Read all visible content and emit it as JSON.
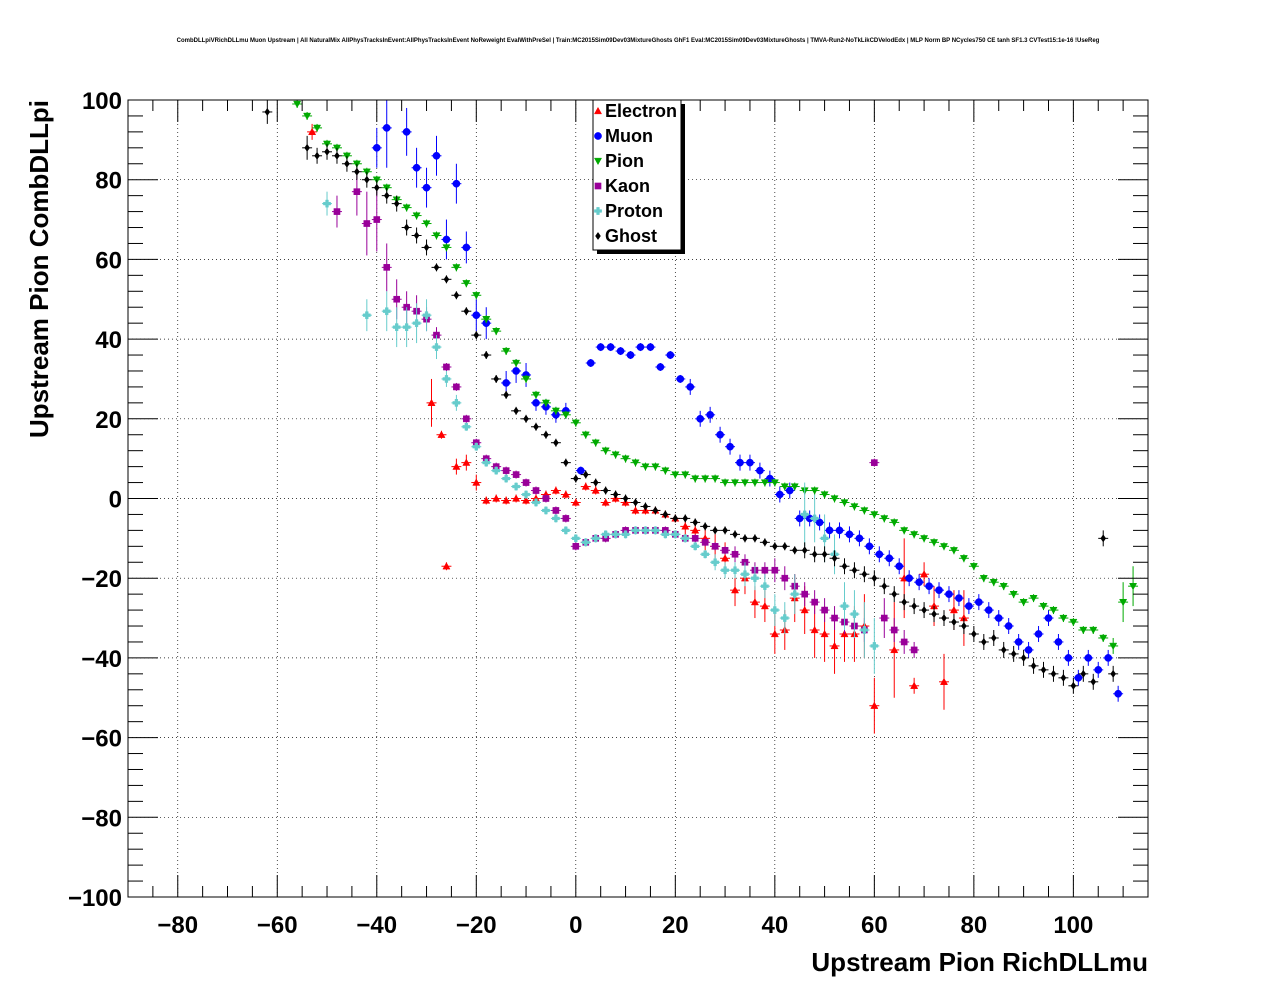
{
  "chart_data": {
    "type": "scatter",
    "title": "CombDLLpiVRichDLLmu Muon Upstream | All NaturalMix AllPhysTracksInEvent:AllPhysTracksInEvent NoReweight EvalWithPreSel | Train:MC2015Sim09Dev03MixtureGhosts GhF1 Eval:MC2015Sim09Dev03MixtureGhosts | TMVA-Run2-NoTkLikCDVelodEdx | MLP Norm BP NCycles750 CE tanh SF1.3 CVTest15:1e-16 !UseReg",
    "xlabel": "Upstream Pion RichDLLmu",
    "ylabel": "Upstream Pion CombDLLpi",
    "xlim": [
      -90,
      115
    ],
    "ylim": [
      -100,
      100
    ],
    "xticks": [
      -80,
      -60,
      -40,
      -20,
      0,
      20,
      40,
      60,
      80,
      100
    ],
    "xtick_labels": [
      "−80",
      "−60",
      "−40",
      "−20",
      "0",
      "20",
      "40",
      "60",
      "80",
      "100"
    ],
    "yticks": [
      -100,
      -80,
      -60,
      -40,
      -20,
      0,
      20,
      40,
      60,
      80,
      100
    ],
    "ytick_labels": [
      "−100",
      "−80",
      "−60",
      "−40",
      "−20",
      "0",
      "20",
      "40",
      "60",
      "80",
      "100"
    ],
    "grid": true,
    "legend_position": "top-center",
    "series": [
      {
        "name": "Electron",
        "color": "#ff0000",
        "marker": "triangle-up",
        "x": [
          -53,
          -29,
          -27,
          -26,
          -24,
          -22,
          -20,
          -18,
          -16,
          -14,
          -12,
          -10,
          -8,
          -6,
          -4,
          -2,
          0,
          2,
          4,
          6,
          8,
          10,
          12,
          14,
          16,
          18,
          20,
          22,
          24,
          26,
          28,
          30,
          32,
          34,
          36,
          38,
          40,
          42,
          44,
          46,
          48,
          50,
          52,
          54,
          56,
          58,
          60,
          64,
          66,
          68,
          70,
          72,
          74,
          76,
          78
        ],
        "y": [
          92,
          24,
          16,
          -17,
          8,
          9,
          4,
          -0.5,
          0,
          -0.5,
          0,
          -0.5,
          0,
          1,
          2,
          1,
          -1,
          3,
          2,
          -1,
          0,
          -1,
          -3,
          -3,
          -3,
          -4,
          -5,
          -7,
          -8,
          -10,
          -12,
          -15,
          -23,
          -20,
          -26,
          -27,
          -34,
          -33,
          -25,
          -28,
          -33,
          -34,
          -37,
          -34,
          -34,
          -32,
          -52,
          -38,
          -20,
          -47,
          -19,
          -27,
          -46,
          -28,
          -30
        ],
        "yerr": [
          2,
          6,
          1,
          1,
          2,
          2,
          2,
          1,
          1,
          1,
          1,
          1,
          1,
          1,
          1,
          1,
          1,
          1,
          1,
          1,
          1,
          1,
          1,
          1,
          1,
          1,
          1,
          2,
          2,
          3,
          3,
          4,
          4,
          4,
          4,
          4,
          5,
          5,
          6,
          6,
          7,
          7,
          7,
          7,
          7,
          8,
          7,
          12,
          10,
          2,
          3,
          5,
          7,
          5,
          7
        ]
      },
      {
        "name": "Muon",
        "color": "#0000ff",
        "marker": "circle",
        "x": [
          -40,
          -38,
          -34,
          -32,
          -30,
          -28,
          -26,
          -24,
          -22,
          -20,
          -18,
          -14,
          -12,
          -10,
          -8,
          -6,
          -4,
          -2,
          1,
          3,
          5,
          7,
          9,
          11,
          13,
          15,
          17,
          19,
          21,
          23,
          25,
          27,
          29,
          31,
          33,
          35,
          37,
          39,
          41,
          43,
          45,
          47,
          49,
          51,
          53,
          55,
          57,
          59,
          61,
          63,
          65,
          67,
          69,
          71,
          73,
          75,
          77,
          79,
          81,
          83,
          85,
          87,
          89,
          91,
          93,
          95,
          97,
          99,
          101,
          103,
          105,
          107,
          109
        ],
        "y": [
          88,
          93,
          92,
          83,
          78,
          86,
          65,
          79,
          63,
          46,
          44,
          29,
          32,
          31,
          24,
          23,
          21,
          22,
          7,
          34,
          38,
          38,
          37,
          36,
          38,
          38,
          33,
          36,
          30,
          28,
          20,
          21,
          16,
          13,
          9,
          9,
          7,
          5,
          1,
          2,
          -5,
          -5,
          -6,
          -8,
          -8,
          -9,
          -10,
          -12,
          -14,
          -15,
          -17,
          -20,
          -21,
          -22,
          -23,
          -24,
          -25,
          -27,
          -26,
          -28,
          -30,
          -32,
          -36,
          -38,
          -34,
          -30,
          -36,
          -40,
          -45,
          -40,
          -43,
          -40,
          -49
        ],
        "yerr": [
          5,
          10,
          6,
          5,
          5,
          5,
          5,
          5,
          4,
          4,
          4,
          3,
          3,
          3,
          2,
          2,
          2,
          2,
          1,
          1,
          1,
          1,
          1,
          1,
          1,
          1,
          1,
          1,
          1,
          2,
          2,
          2,
          2,
          2,
          2,
          2,
          2,
          2,
          2,
          2,
          2,
          2,
          2,
          2,
          2,
          2,
          2,
          2,
          2,
          2,
          2,
          2,
          2,
          2,
          2,
          2,
          2,
          2,
          2,
          2,
          2,
          2,
          2,
          2,
          2,
          2,
          2,
          2,
          2,
          2,
          2,
          2,
          2
        ]
      },
      {
        "name": "Pion",
        "color": "#00aa00",
        "marker": "triangle-down",
        "x": [
          -56,
          -54,
          -52,
          -50,
          -48,
          -46,
          -44,
          -42,
          -40,
          -38,
          -36,
          -34,
          -32,
          -30,
          -28,
          -26,
          -24,
          -22,
          -20,
          -18,
          -16,
          -14,
          -12,
          -10,
          -8,
          -6,
          -4,
          -2,
          0,
          2,
          4,
          6,
          8,
          10,
          12,
          14,
          16,
          18,
          20,
          22,
          24,
          26,
          28,
          30,
          32,
          34,
          36,
          38,
          40,
          42,
          44,
          46,
          48,
          50,
          52,
          54,
          56,
          58,
          60,
          62,
          64,
          66,
          68,
          70,
          72,
          74,
          76,
          78,
          80,
          82,
          84,
          86,
          88,
          90,
          92,
          94,
          96,
          98,
          100,
          102,
          104,
          106,
          108,
          110,
          112
        ],
        "y": [
          99,
          96,
          93,
          89,
          88,
          86,
          84,
          82,
          80,
          78,
          75,
          73,
          71,
          69,
          66,
          63,
          58,
          54,
          51,
          45,
          42,
          37,
          34,
          30,
          26,
          24,
          22,
          21,
          19,
          16,
          14,
          12,
          11,
          10,
          9,
          8,
          8,
          7,
          6,
          6,
          5,
          5,
          5,
          4,
          4,
          4,
          4,
          4,
          4,
          3,
          3,
          2,
          2,
          1,
          0,
          -1,
          -2,
          -3,
          -4,
          -5,
          -6,
          -8,
          -9,
          -10,
          -11,
          -12,
          -13,
          -15,
          -17,
          -20,
          -21,
          -22,
          -24,
          -26,
          -25,
          -27,
          -28,
          -30,
          -31,
          -33,
          -33,
          -35,
          -37,
          -26,
          -22
        ],
        "yerr": [
          1,
          1,
          1,
          1,
          1,
          1,
          1,
          1,
          1,
          1,
          1,
          1,
          1,
          1,
          1,
          1,
          1,
          1,
          1,
          1,
          1,
          1,
          1,
          1,
          1,
          1,
          1,
          1,
          1,
          1,
          1,
          1,
          1,
          1,
          1,
          1,
          1,
          1,
          1,
          1,
          1,
          1,
          1,
          1,
          1,
          1,
          1,
          1,
          1,
          1,
          1,
          1,
          1,
          1,
          1,
          1,
          1,
          1,
          1,
          1,
          1,
          1,
          1,
          1,
          1,
          1,
          1,
          1,
          1,
          1,
          1,
          1,
          1,
          1,
          1,
          1,
          1,
          1,
          1,
          1,
          1,
          1,
          2,
          5,
          5
        ]
      },
      {
        "name": "Kaon",
        "color": "#990099",
        "marker": "square",
        "x": [
          -48,
          -44,
          -42,
          -40,
          -38,
          -36,
          -34,
          -32,
          -30,
          -28,
          -26,
          -24,
          -22,
          -20,
          -18,
          -16,
          -14,
          -12,
          -10,
          -8,
          -6,
          -4,
          -2,
          0,
          2,
          4,
          6,
          8,
          10,
          12,
          14,
          16,
          18,
          20,
          22,
          24,
          26,
          28,
          30,
          32,
          34,
          36,
          38,
          40,
          42,
          44,
          46,
          48,
          50,
          52,
          54,
          56,
          58,
          60,
          62,
          64,
          66,
          68
        ],
        "y": [
          72,
          77,
          69,
          70,
          58,
          50,
          48,
          47,
          45,
          41,
          33,
          28,
          20,
          14,
          10,
          8,
          7,
          6,
          4,
          2,
          0,
          -3,
          -5,
          -12,
          -11,
          -10,
          -10,
          -9,
          -8,
          -8,
          -8,
          -8,
          -8,
          -9,
          -10,
          -10,
          -11,
          -12,
          -13,
          -14,
          -16,
          -18,
          -18,
          -18,
          -20,
          -22,
          -24,
          -26,
          -28,
          -30,
          -31,
          -32,
          -33,
          9,
          -30,
          -33,
          -36,
          -38
        ],
        "yerr": [
          4,
          6,
          8,
          8,
          6,
          5,
          4,
          4,
          3,
          2,
          1,
          1,
          1,
          1,
          1,
          1,
          1,
          1,
          1,
          1,
          1,
          1,
          1,
          1,
          1,
          1,
          1,
          1,
          1,
          1,
          1,
          1,
          1,
          1,
          1,
          1,
          1,
          1,
          1,
          2,
          2,
          2,
          2,
          3,
          3,
          3,
          3,
          3,
          3,
          3,
          3,
          3,
          3,
          1,
          5,
          3,
          3,
          2
        ]
      },
      {
        "name": "Proton",
        "color": "#66cccc",
        "marker": "cross",
        "x": [
          -50,
          -42,
          -38,
          -36,
          -34,
          -32,
          -30,
          -28,
          -26,
          -24,
          -22,
          -20,
          -18,
          -16,
          -14,
          -12,
          -10,
          -8,
          -6,
          -4,
          -2,
          0,
          2,
          4,
          6,
          8,
          10,
          12,
          14,
          16,
          18,
          20,
          22,
          24,
          26,
          28,
          30,
          32,
          34,
          36,
          38,
          40,
          42,
          44,
          46,
          48,
          50,
          52,
          54,
          56,
          58,
          60
        ],
        "y": [
          74,
          46,
          47,
          43,
          43,
          44,
          46,
          38,
          30,
          24,
          18,
          13,
          9,
          7,
          5,
          3,
          1,
          -1,
          -3,
          -5,
          -8,
          -10,
          -11,
          -10,
          -9,
          -9,
          -9,
          -8,
          -8,
          -8,
          -9,
          -9,
          -10,
          -12,
          -14,
          -16,
          -18,
          -18,
          -19,
          -20,
          -22,
          -28,
          -30,
          -24,
          -4,
          -5,
          -10,
          -14,
          -27,
          -29,
          -33,
          -37
        ],
        "yerr": [
          3,
          4,
          5,
          5,
          5,
          5,
          4,
          3,
          2,
          2,
          1,
          1,
          1,
          1,
          1,
          1,
          1,
          1,
          1,
          1,
          1,
          1,
          1,
          1,
          1,
          1,
          1,
          1,
          1,
          1,
          1,
          1,
          1,
          1,
          1,
          2,
          2,
          2,
          3,
          3,
          3,
          4,
          4,
          5,
          8,
          6,
          6,
          5,
          6,
          6,
          7,
          7
        ]
      },
      {
        "name": "Ghost",
        "color": "#000000",
        "marker": "diamond",
        "x": [
          -62,
          -54,
          -52,
          -50,
          -48,
          -46,
          -44,
          -42,
          -40,
          -38,
          -36,
          -34,
          -32,
          -30,
          -28,
          -26,
          -24,
          -22,
          -20,
          -18,
          -16,
          -14,
          -12,
          -10,
          -8,
          -6,
          -4,
          -2,
          0,
          2,
          4,
          6,
          8,
          10,
          12,
          14,
          16,
          18,
          20,
          22,
          24,
          26,
          28,
          30,
          32,
          34,
          36,
          38,
          40,
          42,
          44,
          46,
          48,
          50,
          52,
          54,
          56,
          58,
          60,
          62,
          64,
          66,
          68,
          70,
          72,
          74,
          76,
          78,
          80,
          82,
          84,
          86,
          88,
          90,
          92,
          94,
          96,
          98,
          100,
          102,
          104,
          106,
          108
        ],
        "y": [
          97,
          88,
          86,
          87,
          86,
          84,
          82,
          80,
          78,
          76,
          74,
          68,
          66,
          63,
          58,
          55,
          51,
          47,
          41,
          36,
          30,
          26,
          22,
          20,
          18,
          16,
          14,
          9,
          5,
          6,
          4,
          2,
          1,
          0,
          -1,
          -2,
          -3,
          -4,
          -5,
          -5,
          -6,
          -7,
          -8,
          -8,
          -9,
          -10,
          -10,
          -11,
          -12,
          -12,
          -13,
          -13,
          -14,
          -14,
          -15,
          -17,
          -18,
          -19,
          -20,
          -22,
          -24,
          -26,
          -27,
          -28,
          -29,
          -30,
          -31,
          -32,
          -34,
          -36,
          -35,
          -38,
          -39,
          -40,
          -42,
          -43,
          -44,
          -45,
          -47,
          -44,
          -46,
          -10,
          -44
        ],
        "yerr": [
          3,
          3,
          2,
          2,
          2,
          2,
          2,
          2,
          2,
          2,
          2,
          2,
          2,
          2,
          1,
          1,
          1,
          1,
          1,
          1,
          1,
          1,
          1,
          1,
          1,
          1,
          1,
          1,
          1,
          1,
          1,
          1,
          1,
          1,
          1,
          1,
          1,
          1,
          1,
          1,
          1,
          1,
          1,
          1,
          1,
          1,
          1,
          1,
          1,
          1,
          1,
          2,
          2,
          2,
          2,
          2,
          2,
          2,
          2,
          2,
          2,
          2,
          2,
          2,
          2,
          2,
          2,
          2,
          2,
          2,
          2,
          2,
          2,
          2,
          2,
          2,
          2,
          2,
          2,
          2,
          2,
          2,
          2
        ]
      }
    ]
  }
}
